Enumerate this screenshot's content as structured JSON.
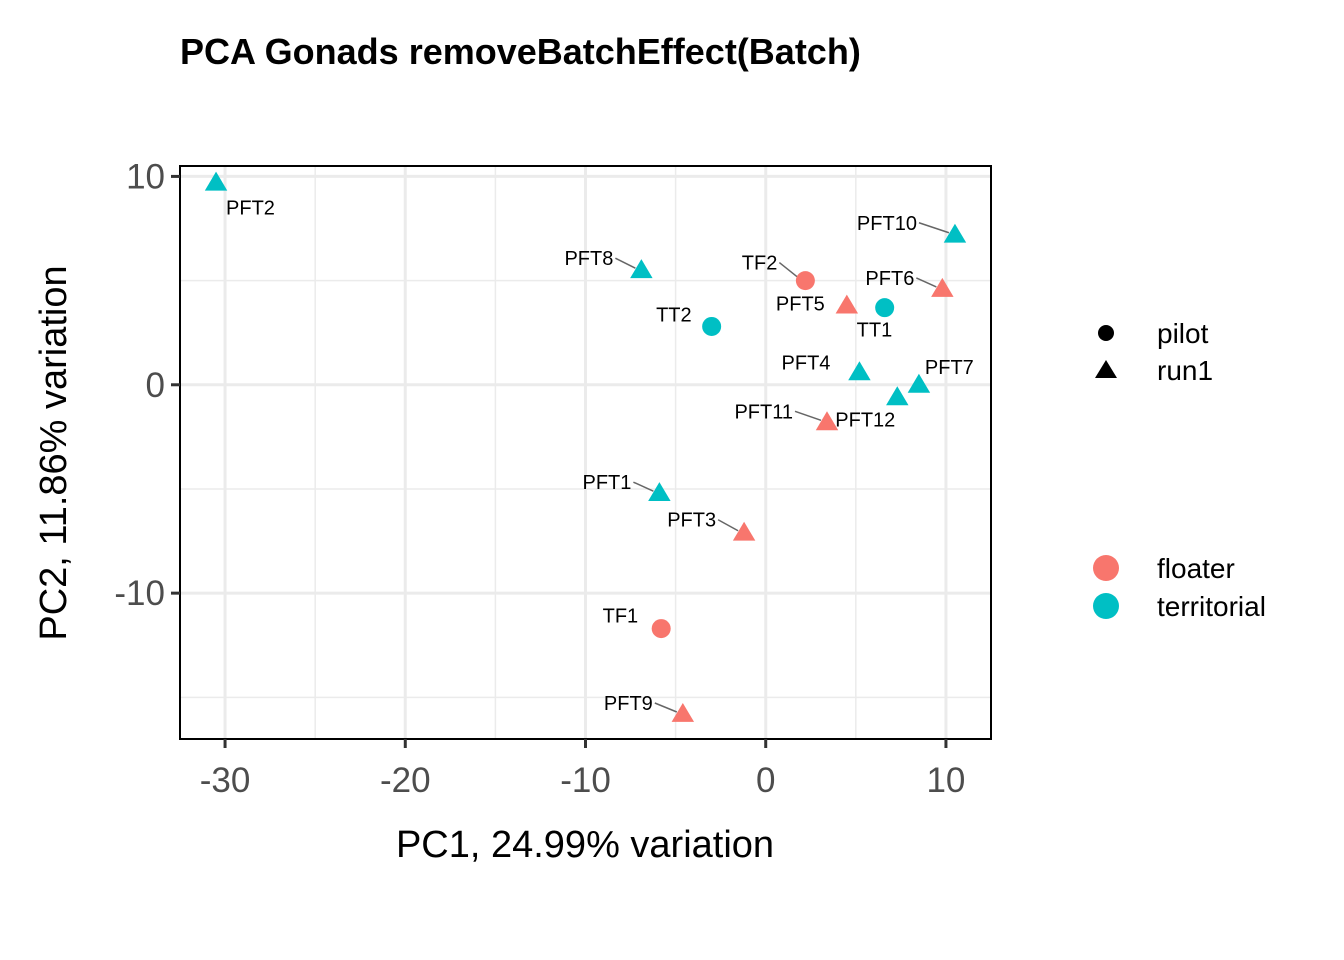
{
  "chart_data": {
    "type": "scatter",
    "title": "PCA Gonads removeBatchEffect(Batch)",
    "xlabel": "PC1, 24.99% variation",
    "ylabel": "PC2, 11.86% variation",
    "xlim": [
      -32.5,
      12.5
    ],
    "ylim": [
      -17,
      10.5
    ],
    "xticks": [
      -30,
      -20,
      -10,
      0,
      10
    ],
    "xtick_labels": [
      "-30",
      "-20",
      "-10",
      "0",
      "10"
    ],
    "yticks": [
      10,
      0,
      -10
    ],
    "ytick_labels": [
      "10",
      "0",
      "-10"
    ],
    "grid": true,
    "legend_position": "right",
    "points": [
      {
        "label": "PFT2",
        "x": -30.5,
        "y": 9.7,
        "group": "territorial",
        "batch": "run1"
      },
      {
        "label": "PFT10",
        "x": 10.5,
        "y": 7.2,
        "group": "territorial",
        "batch": "run1"
      },
      {
        "label": "PFT8",
        "x": -6.9,
        "y": 5.5,
        "group": "territorial",
        "batch": "run1"
      },
      {
        "label": "TF2",
        "x": 2.2,
        "y": 5.0,
        "group": "floater",
        "batch": "pilot"
      },
      {
        "label": "PFT6",
        "x": 9.8,
        "y": 4.6,
        "group": "floater",
        "batch": "run1"
      },
      {
        "label": "PFT5",
        "x": 4.5,
        "y": 3.8,
        "group": "floater",
        "batch": "run1"
      },
      {
        "label": "TT1",
        "x": 6.6,
        "y": 3.7,
        "group": "territorial",
        "batch": "pilot"
      },
      {
        "label": "TT2",
        "x": -3.0,
        "y": 2.8,
        "group": "territorial",
        "batch": "pilot"
      },
      {
        "label": "PFT4",
        "x": 5.2,
        "y": 0.6,
        "group": "territorial",
        "batch": "run1"
      },
      {
        "label": "PFT7",
        "x": 8.5,
        "y": 0.0,
        "group": "territorial",
        "batch": "run1"
      },
      {
        "label": "PFT12",
        "x": 7.3,
        "y": -0.6,
        "group": "territorial",
        "batch": "run1"
      },
      {
        "label": "PFT11",
        "x": 3.4,
        "y": -1.8,
        "group": "floater",
        "batch": "run1"
      },
      {
        "label": "PFT1",
        "x": -5.9,
        "y": -5.2,
        "group": "territorial",
        "batch": "run1"
      },
      {
        "label": "PFT3",
        "x": -1.2,
        "y": -7.1,
        "group": "floater",
        "batch": "run1"
      },
      {
        "label": "TF1",
        "x": -5.8,
        "y": -11.7,
        "group": "floater",
        "batch": "pilot"
      },
      {
        "label": "PFT9",
        "x": -4.6,
        "y": -15.8,
        "group": "floater",
        "batch": "run1"
      }
    ],
    "shape_legend": [
      {
        "label": "pilot",
        "shape": "circle"
      },
      {
        "label": "run1",
        "shape": "triangle"
      }
    ],
    "color_legend": [
      {
        "label": "floater",
        "color": "#F8766D"
      },
      {
        "label": "territorial",
        "color": "#00BFC4"
      }
    ]
  }
}
